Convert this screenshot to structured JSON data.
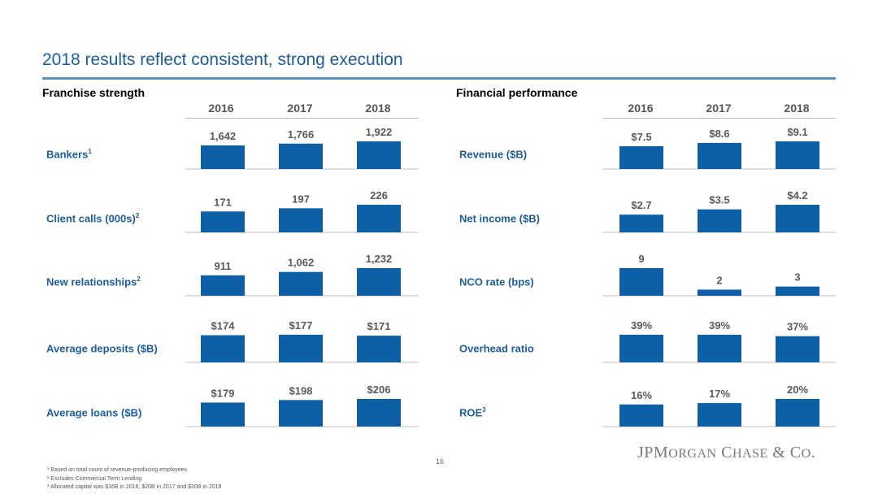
{
  "title": "2018 results reflect consistent, strong execution",
  "page_number": "16",
  "logo_text": "JPMorgan Chase & Co.",
  "colors": {
    "bar": "#0d5fa6",
    "title": "#1c5d99",
    "rule": "#5b8fc7",
    "value_label": "#595959"
  },
  "footnotes": [
    "¹ Based on total count of revenue-producing employees",
    "² Excludes Commercial Term Lending",
    "³ Allocated capital was $16B in 2016, $20B in 2017 and $20B in 2018"
  ],
  "left_panel": {
    "heading": "Franchise strength",
    "years": [
      "2016",
      "2017",
      "2018"
    ],
    "rows": [
      {
        "label": "Bankers",
        "sup": "1"
      },
      {
        "label": "Client calls (000s)",
        "sup": "2"
      },
      {
        "label": "New relationships",
        "sup": "2"
      },
      {
        "label": "Average deposits ($B)",
        "sup": ""
      },
      {
        "label": "Average loans ($B)",
        "sup": ""
      }
    ]
  },
  "right_panel": {
    "heading": "Financial performance",
    "years": [
      "2016",
      "2017",
      "2018"
    ],
    "rows": [
      {
        "label": "Revenue ($B)",
        "sup": ""
      },
      {
        "label": "Net income ($B)",
        "sup": ""
      },
      {
        "label": "NCO rate (bps)",
        "sup": ""
      },
      {
        "label": "Overhead ratio",
        "sup": ""
      },
      {
        "label": "ROE",
        "sup": "3"
      }
    ]
  },
  "chart_data": [
    {
      "type": "bar",
      "title": "Bankers",
      "categories": [
        "2016",
        "2017",
        "2018"
      ],
      "values": [
        1642,
        1766,
        1922
      ],
      "labels": [
        "1,642",
        "1,766",
        "1,922"
      ]
    },
    {
      "type": "bar",
      "title": "Client calls (000s)",
      "categories": [
        "2016",
        "2017",
        "2018"
      ],
      "values": [
        171,
        197,
        226
      ],
      "labels": [
        "171",
        "197",
        "226"
      ]
    },
    {
      "type": "bar",
      "title": "New relationships",
      "categories": [
        "2016",
        "2017",
        "2018"
      ],
      "values": [
        911,
        1062,
        1232
      ],
      "labels": [
        "911",
        "1,062",
        "1,232"
      ]
    },
    {
      "type": "bar",
      "title": "Average deposits ($B)",
      "categories": [
        "2016",
        "2017",
        "2018"
      ],
      "values": [
        174,
        177,
        171
      ],
      "labels": [
        "$174",
        "$177",
        "$171"
      ]
    },
    {
      "type": "bar",
      "title": "Average loans ($B)",
      "categories": [
        "2016",
        "2017",
        "2018"
      ],
      "values": [
        179,
        198,
        206
      ],
      "labels": [
        "$179",
        "$198",
        "$206"
      ]
    },
    {
      "type": "bar",
      "title": "Revenue ($B)",
      "categories": [
        "2016",
        "2017",
        "2018"
      ],
      "values": [
        7.5,
        8.6,
        9.1
      ],
      "labels": [
        "$7.5",
        "$8.6",
        "$9.1"
      ]
    },
    {
      "type": "bar",
      "title": "Net income ($B)",
      "categories": [
        "2016",
        "2017",
        "2018"
      ],
      "values": [
        2.7,
        3.5,
        4.2
      ],
      "labels": [
        "$2.7",
        "$3.5",
        "$4.2"
      ]
    },
    {
      "type": "bar",
      "title": "NCO rate (bps)",
      "categories": [
        "2016",
        "2017",
        "2018"
      ],
      "values": [
        9,
        2,
        3
      ],
      "labels": [
        "9",
        "2",
        "3"
      ]
    },
    {
      "type": "bar",
      "title": "Overhead ratio",
      "categories": [
        "2016",
        "2017",
        "2018"
      ],
      "values": [
        39,
        39,
        37
      ],
      "labels": [
        "39%",
        "39%",
        "37%"
      ]
    },
    {
      "type": "bar",
      "title": "ROE",
      "categories": [
        "2016",
        "2017",
        "2018"
      ],
      "values": [
        16,
        17,
        20
      ],
      "labels": [
        "16%",
        "17%",
        "20%"
      ]
    }
  ]
}
